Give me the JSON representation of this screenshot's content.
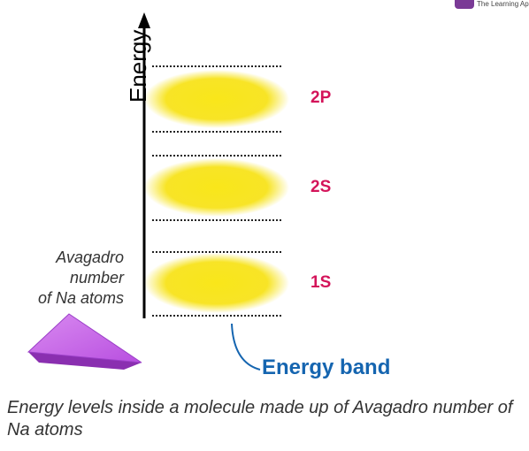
{
  "logo": {
    "text": "The Learning Ap",
    "brand_color": "#7a3a96"
  },
  "axis": {
    "label": "Energy"
  },
  "levels": [
    {
      "label": "2P"
    },
    {
      "label": "2S"
    },
    {
      "label": "1S"
    }
  ],
  "side_label": {
    "line1": "Avagadro",
    "line2": "number",
    "line3": "of Na atoms"
  },
  "band_label": "Energy band",
  "caption": "Energy levels inside a molecule made up of Avagadro number of Na atoms",
  "colors": {
    "level_label": "#d4145a",
    "band_label": "#1565b0",
    "band_fill": "#f7e31b",
    "crystal": "#b84fe0"
  }
}
